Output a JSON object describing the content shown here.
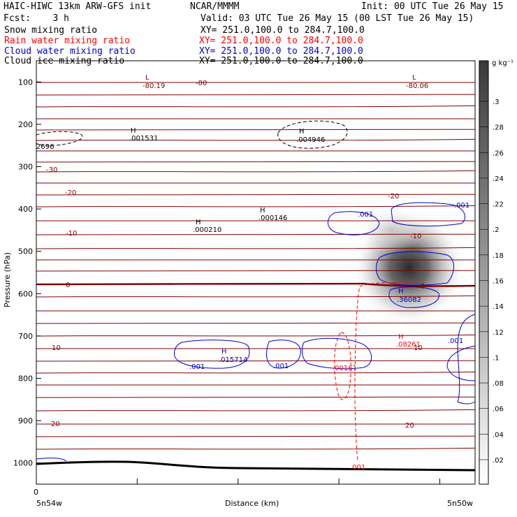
{
  "header": {
    "model": "HAIC-HIWC 13km ARW-GFS init",
    "org": "NCAR/MMMM",
    "init": "Init: 00 UTC Tue 26 May 15",
    "fcst": "Fcst:    3 h",
    "valid": "Valid: 03 UTC Tue 26 May 15 (00 LST Tue 26 May 15)",
    "fields": [
      {
        "name": "Snow mixing ratio",
        "xy": "XY= 251.0,100.0 to 284.7,100.0",
        "color": "#000000"
      },
      {
        "name": "Rain water mixing ratio",
        "xy": "XY= 251.0,100.0 to 284.7,100.0",
        "color": "#ff0000"
      },
      {
        "name": "Cloud water mixing ratio",
        "xy": "XY= 251.0,100.0 to 284.7,100.0",
        "color": "#0000cc"
      },
      {
        "name": "Cloud ice mixing ratio",
        "xy": "XY= 251.0,100.0 to 284.7,100.0",
        "color": "#000000"
      }
    ]
  },
  "chart_data": {
    "type": "contour",
    "xlabel": "Distance (km)",
    "ylabel": "Pressure (hPa)",
    "x_tick_labels": [
      "0"
    ],
    "x_endpoints": {
      "left": "5n54w",
      "right": "5n50w"
    },
    "y_ticks": [
      100,
      200,
      300,
      400,
      500,
      600,
      700,
      800,
      900,
      1000
    ],
    "ylim": [
      1050,
      50
    ],
    "colorbar": {
      "unit": "g kg⁻¹",
      "ticks": [
        ".02",
        ".04",
        ".06",
        ".08",
        ".1",
        ".12",
        ".14",
        ".16",
        ".18",
        ".2",
        ".22",
        ".24",
        ".26",
        ".28",
        ".3"
      ]
    },
    "temperature_labels": [
      "-80",
      "-30",
      "-20",
      "-20",
      "-10",
      "-10",
      "0",
      "0",
      "10",
      "10",
      "20",
      "20"
    ],
    "extrema_labels": [
      {
        "kind": "L",
        "value": "-80.19",
        "color": "#800000"
      },
      {
        "kind": "L",
        "value": "-80.06",
        "color": "#800000"
      },
      {
        "kind": "H",
        "value": ".001531",
        "color": "#000000"
      },
      {
        "kind": "H",
        "value": ".004946",
        "color": "#000000"
      },
      {
        "kind": "H",
        "value": ".000146",
        "color": "#000000"
      },
      {
        "kind": "H",
        "value": ".000210",
        "color": "#000000"
      },
      {
        "kind": "H",
        "value": ".36082",
        "color": "#0000cc"
      },
      {
        "kind": "H",
        "value": ".015714",
        "color": "#0000cc"
      },
      {
        "kind": "H",
        "value": ".08261",
        "color": "#ff0000"
      }
    ],
    "contour_labels": [
      {
        "value": ".001",
        "color": "#0000cc"
      },
      {
        "value": ".001",
        "color": "#0000cc"
      },
      {
        "value": ".001",
        "color": "#0000cc"
      },
      {
        "value": ".001",
        "color": "#0000cc"
      },
      {
        "value": ".001",
        "color": "#0000cc"
      },
      {
        "value": ".00161",
        "color": "#ff0000"
      },
      {
        "value": ".001",
        "color": "#ff0000"
      },
      {
        "value": "2696",
        "color": "#000000"
      }
    ]
  }
}
